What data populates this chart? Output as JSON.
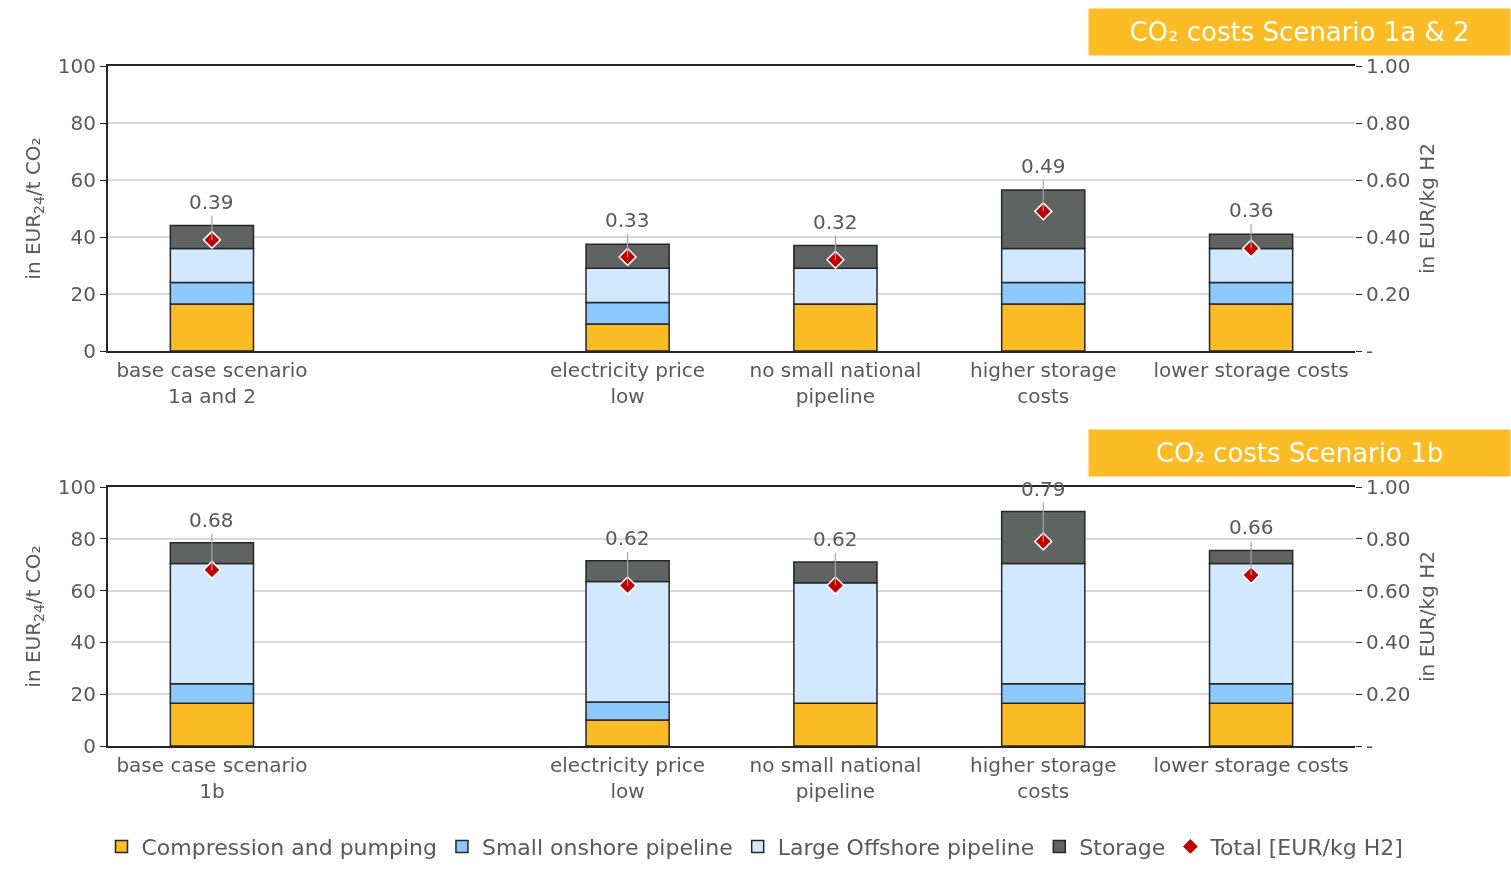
{
  "chart_data": [
    {
      "type": "bar",
      "title": "CO₂ costs Scenario 1a & 2",
      "ylabel": "in EUR$_{24}$/t CO₂",
      "y2label": "in EUR/kg H2",
      "stacked": true,
      "categories": [
        "base case scenario 1a and 2",
        null,
        "electricity price low",
        "no small national pipeline",
        "higher storage costs",
        "lower storage costs"
      ],
      "series": [
        {
          "name": "Compression and pumping",
          "color": "#fbbc25",
          "values": [
            16.5,
            null,
            9.5,
            16.5,
            16.5,
            16.5
          ]
        },
        {
          "name": "Small onshore pipeline",
          "color": "#8dc8ff",
          "values": [
            7.5,
            null,
            7.5,
            0,
            7.5,
            7.5
          ]
        },
        {
          "name": "Large Offshore pipeline",
          "color": "#d2e8ff",
          "values": [
            12,
            null,
            12,
            12.5,
            12,
            12
          ]
        },
        {
          "name": "Storage",
          "color": "#5f6462",
          "values": [
            8,
            null,
            8.5,
            8,
            20.5,
            5
          ]
        },
        {
          "name": "Total [EUR/kg H2]",
          "type": "scatter",
          "axis": "y2",
          "marker": "diamond",
          "color": "#c00000",
          "values": [
            0.39,
            null,
            0.33,
            0.32,
            0.49,
            0.36
          ],
          "value_labels": [
            "0.39",
            null,
            "0.33",
            "0.32",
            "0.49",
            "0.36"
          ]
        }
      ],
      "ylim": [
        0,
        100
      ],
      "yticks": [
        0,
        20,
        40,
        60,
        80,
        100
      ],
      "y2lim": [
        0,
        1
      ],
      "y2ticks": [
        {
          "value": 0,
          "label": "-"
        },
        {
          "value": 0.2,
          "label": "0.20"
        },
        {
          "value": 0.4,
          "label": "0.40"
        },
        {
          "value": 0.6,
          "label": "0.60"
        },
        {
          "value": 0.8,
          "label": "0.80"
        },
        {
          "value": 1,
          "label": "1.00"
        }
      ],
      "grid": "y",
      "legend": "bottom"
    },
    {
      "type": "bar",
      "title": "CO₂ costs Scenario 1b",
      "ylabel": "in EUR$_{24}$/t CO₂",
      "y2label": "in EUR/kg H2",
      "stacked": true,
      "categories": [
        "base case scenario 1b",
        null,
        "electricity price low",
        "no small national pipeline",
        "higher storage costs",
        "lower storage costs"
      ],
      "series": [
        {
          "name": "Compression and pumping",
          "color": "#fbbc25",
          "values": [
            16.5,
            null,
            10,
            16.5,
            16.5,
            16.5
          ]
        },
        {
          "name": "Small onshore pipeline",
          "color": "#8dc8ff",
          "values": [
            7.5,
            null,
            7,
            0,
            7.5,
            7.5
          ]
        },
        {
          "name": "Large Offshore pipeline",
          "color": "#d2e8ff",
          "values": [
            46.5,
            null,
            46.5,
            46.5,
            46.5,
            46.5
          ]
        },
        {
          "name": "Storage",
          "color": "#5f6462",
          "values": [
            8,
            null,
            8,
            8,
            20,
            5
          ]
        },
        {
          "name": "Total [EUR/kg H2]",
          "type": "scatter",
          "axis": "y2",
          "marker": "diamond",
          "color": "#c00000",
          "values": [
            0.68,
            null,
            0.62,
            0.62,
            0.79,
            0.66
          ],
          "value_labels": [
            "0.68",
            null,
            "0.62",
            "0.62",
            "0.79",
            "0.66"
          ]
        }
      ],
      "ylim": [
        0,
        100
      ],
      "yticks": [
        0,
        20,
        40,
        60,
        80,
        100
      ],
      "y2lim": [
        0,
        1
      ],
      "y2ticks": [
        {
          "value": 0,
          "label": "-"
        },
        {
          "value": 0.2,
          "label": "0.20"
        },
        {
          "value": 0.4,
          "label": "0.40"
        },
        {
          "value": 0.6,
          "label": "0.60"
        },
        {
          "value": 0.8,
          "label": "0.80"
        },
        {
          "value": 1,
          "label": "1.00"
        }
      ],
      "grid": "y",
      "legend": "bottom"
    }
  ]
}
